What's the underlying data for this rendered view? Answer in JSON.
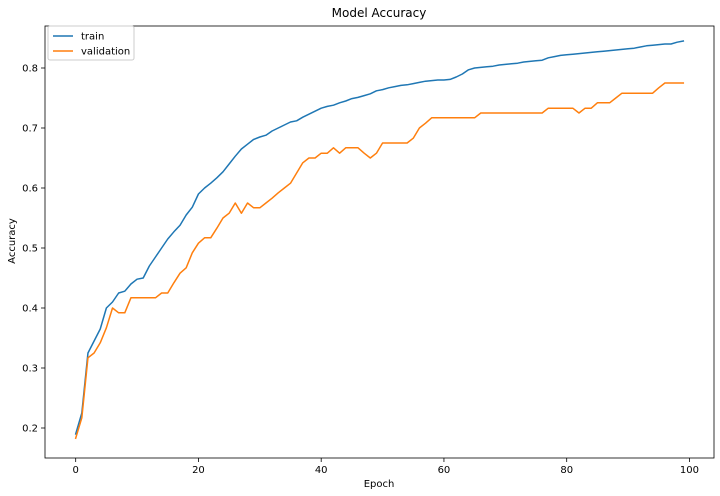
{
  "chart_data": {
    "type": "line",
    "title": "Model Accuracy",
    "xlabel": "Epoch",
    "ylabel": "Accuracy",
    "xlim": [
      -5,
      104
    ],
    "ylim": [
      0.15,
      0.87
    ],
    "xticks": [
      0,
      20,
      40,
      60,
      80,
      100
    ],
    "yticks": [
      0.2,
      0.3,
      0.4,
      0.5,
      0.6,
      0.7,
      0.8
    ],
    "grid": false,
    "legend_position": "upper-left",
    "series": [
      {
        "name": "train",
        "color": "#1f77b4",
        "x": [
          0,
          1,
          2,
          3,
          4,
          5,
          6,
          7,
          8,
          9,
          10,
          11,
          12,
          13,
          14,
          15,
          16,
          17,
          18,
          19,
          20,
          21,
          22,
          23,
          24,
          25,
          26,
          27,
          28,
          29,
          30,
          31,
          32,
          33,
          34,
          35,
          36,
          37,
          38,
          39,
          40,
          41,
          42,
          43,
          44,
          45,
          46,
          47,
          48,
          49,
          50,
          51,
          52,
          53,
          54,
          55,
          56,
          57,
          58,
          59,
          60,
          61,
          62,
          63,
          64,
          65,
          66,
          67,
          68,
          69,
          70,
          71,
          72,
          73,
          74,
          75,
          76,
          77,
          78,
          79,
          80,
          81,
          82,
          83,
          84,
          85,
          86,
          87,
          88,
          89,
          90,
          91,
          92,
          93,
          94,
          95,
          96,
          97,
          98,
          99
        ],
        "values": [
          0.19,
          0.225,
          0.325,
          0.345,
          0.365,
          0.4,
          0.41,
          0.425,
          0.428,
          0.44,
          0.448,
          0.45,
          0.47,
          0.485,
          0.5,
          0.515,
          0.527,
          0.538,
          0.555,
          0.568,
          0.59,
          0.6,
          0.608,
          0.617,
          0.627,
          0.64,
          0.653,
          0.665,
          0.673,
          0.681,
          0.685,
          0.688,
          0.695,
          0.7,
          0.705,
          0.71,
          0.712,
          0.718,
          0.723,
          0.728,
          0.733,
          0.736,
          0.738,
          0.742,
          0.745,
          0.749,
          0.751,
          0.754,
          0.757,
          0.762,
          0.764,
          0.767,
          0.769,
          0.771,
          0.772,
          0.774,
          0.776,
          0.778,
          0.779,
          0.78,
          0.78,
          0.781,
          0.785,
          0.79,
          0.797,
          0.8,
          0.801,
          0.802,
          0.803,
          0.805,
          0.806,
          0.807,
          0.808,
          0.81,
          0.811,
          0.812,
          0.813,
          0.817,
          0.819,
          0.821,
          0.822,
          0.823,
          0.824,
          0.825,
          0.826,
          0.827,
          0.828,
          0.829,
          0.83,
          0.831,
          0.832,
          0.833,
          0.835,
          0.837,
          0.838,
          0.839,
          0.84,
          0.84,
          0.843,
          0.845
        ]
      },
      {
        "name": "validation",
        "color": "#ff7f0e",
        "x": [
          0,
          1,
          2,
          3,
          4,
          5,
          6,
          7,
          8,
          9,
          10,
          11,
          12,
          13,
          14,
          15,
          16,
          17,
          18,
          19,
          20,
          21,
          22,
          23,
          24,
          25,
          26,
          27,
          28,
          29,
          30,
          31,
          32,
          33,
          34,
          35,
          36,
          37,
          38,
          39,
          40,
          41,
          42,
          43,
          44,
          45,
          46,
          47,
          48,
          49,
          50,
          51,
          52,
          53,
          54,
          55,
          56,
          57,
          58,
          59,
          60,
          61,
          62,
          63,
          64,
          65,
          66,
          67,
          68,
          69,
          70,
          71,
          72,
          73,
          74,
          75,
          76,
          77,
          78,
          79,
          80,
          81,
          82,
          83,
          84,
          85,
          86,
          87,
          88,
          89,
          90,
          91,
          92,
          93,
          94,
          95,
          96,
          97,
          98,
          99
        ],
        "values": [
          0.183,
          0.217,
          0.317,
          0.325,
          0.342,
          0.367,
          0.4,
          0.392,
          0.392,
          0.417,
          0.417,
          0.417,
          0.417,
          0.417,
          0.425,
          0.425,
          0.442,
          0.458,
          0.467,
          0.492,
          0.508,
          0.517,
          0.517,
          0.533,
          0.55,
          0.558,
          0.575,
          0.558,
          0.575,
          0.567,
          0.567,
          0.575,
          0.583,
          0.592,
          0.6,
          0.608,
          0.625,
          0.642,
          0.65,
          0.65,
          0.658,
          0.658,
          0.667,
          0.658,
          0.667,
          0.667,
          0.667,
          0.658,
          0.65,
          0.658,
          0.675,
          0.675,
          0.675,
          0.675,
          0.675,
          0.683,
          0.7,
          0.708,
          0.717,
          0.717,
          0.717,
          0.717,
          0.717,
          0.717,
          0.717,
          0.717,
          0.725,
          0.725,
          0.725,
          0.725,
          0.725,
          0.725,
          0.725,
          0.725,
          0.725,
          0.725,
          0.725,
          0.733,
          0.733,
          0.733,
          0.733,
          0.733,
          0.725,
          0.733,
          0.733,
          0.742,
          0.742,
          0.742,
          0.75,
          0.758,
          0.758,
          0.758,
          0.758,
          0.758,
          0.758,
          0.767,
          0.775,
          0.775,
          0.775,
          0.775
        ]
      }
    ]
  }
}
